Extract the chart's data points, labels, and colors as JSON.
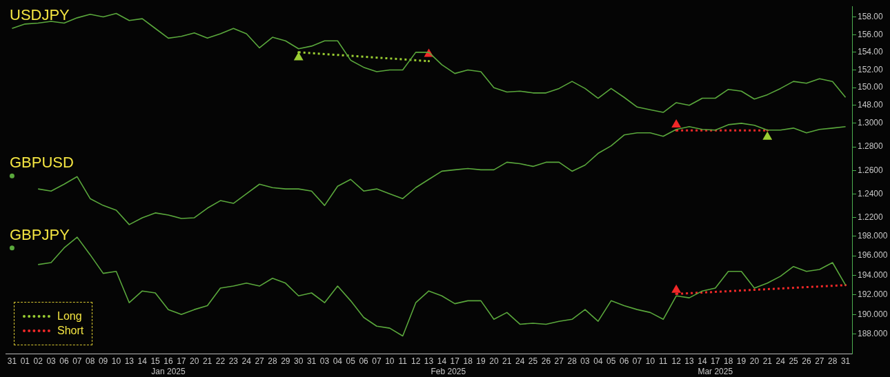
{
  "chart_data": {
    "type": "line",
    "line_style": "solid",
    "legend": "bottom left",
    "categories": [
      "31",
      "01",
      "02",
      "03",
      "06",
      "07",
      "08",
      "09",
      "10",
      "13",
      "14",
      "15",
      "16",
      "17",
      "20",
      "21",
      "22",
      "23",
      "24",
      "27",
      "28",
      "29",
      "30",
      "31",
      "03",
      "04",
      "05",
      "06",
      "07",
      "10",
      "11",
      "12",
      "13",
      "14",
      "17",
      "18",
      "19",
      "20",
      "21",
      "24",
      "25",
      "26",
      "27",
      "28",
      "03",
      "04",
      "05",
      "06",
      "07",
      "10",
      "11",
      "12",
      "13",
      "14",
      "17",
      "18",
      "19",
      "20",
      "21",
      "24",
      "25",
      "26",
      "27",
      "28",
      "31"
    ],
    "annotations": [
      "Jan 2025",
      "Feb 2025",
      "Mar 2025"
    ],
    "ylim": [
      119.9,
      159.2
    ],
    "yticks": [
      {
        "value": 148,
        "label": "148.00"
      },
      {
        "value": 150,
        "label": "150.00"
      },
      {
        "value": 152,
        "label": "152.00"
      },
      {
        "value": 154,
        "label": "154.00"
      },
      {
        "value": 156,
        "label": "156.00"
      },
      {
        "value": 158,
        "label": "158.00"
      }
    ],
    "y2lim": [
      1.105,
      1.399
    ],
    "y2ticks": [
      {
        "value": 1.22,
        "label": "1.2200"
      },
      {
        "value": 1.24,
        "label": "1.2400"
      },
      {
        "value": 1.26,
        "label": "1.2600"
      },
      {
        "value": 1.28,
        "label": "1.2800"
      },
      {
        "value": 1.3,
        "label": "1.3000"
      }
    ],
    "y3lim": [
      186.0,
      221.5
    ],
    "y3ticks": [
      {
        "value": 188,
        "label": "188.000"
      },
      {
        "value": 190,
        "label": "190.000"
      },
      {
        "value": 192,
        "label": "192.000"
      },
      {
        "value": 194,
        "label": "194.000"
      },
      {
        "value": 196,
        "label": "196.000"
      },
      {
        "value": 198,
        "label": "198.000"
      }
    ],
    "series": [
      {
        "name": "USDJPY",
        "axis": "y",
        "color": "#5aa83c",
        "marker": "none",
        "values": [
          156.7,
          157.2,
          157.3,
          157.5,
          157.3,
          157.9,
          158.3,
          158.0,
          158.4,
          157.6,
          157.8,
          156.7,
          155.6,
          155.8,
          156.2,
          155.6,
          156.1,
          156.7,
          156.1,
          154.5,
          155.7,
          155.3,
          154.4,
          154.7,
          155.3,
          155.3,
          153.1,
          152.3,
          151.8,
          152.0,
          152.0,
          154.0,
          154.0,
          152.6,
          151.6,
          152.0,
          151.8,
          150.0,
          149.5,
          149.6,
          149.4,
          149.4,
          149.9,
          150.7,
          149.9,
          148.8,
          149.9,
          148.9,
          147.8,
          147.5,
          147.2,
          148.3,
          148.0,
          148.8,
          148.8,
          149.8,
          149.6,
          148.7,
          149.2,
          149.9,
          150.7,
          150.5,
          151.0,
          150.7,
          148.9
        ]
      },
      {
        "name": "GBPUSD",
        "axis": "y2",
        "color": "#5aa83c",
        "marker": "none",
        "values": [
          1.2554,
          null,
          1.2444,
          1.2426,
          1.2484,
          1.2548,
          1.2362,
          1.2304,
          1.2264,
          1.2142,
          1.22,
          1.2241,
          1.2223,
          1.2194,
          1.22,
          1.2281,
          1.2345,
          1.2322,
          1.2403,
          1.2484,
          1.2455,
          1.2444,
          1.2444,
          1.2426,
          1.2304,
          1.2467,
          1.2525,
          1.2426,
          1.2444,
          1.2403,
          1.2362,
          1.2455,
          1.2525,
          1.2594,
          1.2606,
          1.2617,
          1.2606,
          1.2606,
          1.267,
          1.2658,
          1.2635,
          1.267,
          1.267,
          1.2594,
          1.2646,
          1.2745,
          1.2809,
          1.2901,
          1.2919,
          1.2919,
          1.289,
          1.2948,
          1.2971,
          1.2948,
          1.2942,
          1.2988,
          1.3,
          1.2983,
          1.2942,
          1.2942,
          1.2959,
          1.2919,
          1.2948,
          1.2959,
          1.2971
        ]
      },
      {
        "name": "GBPJPY",
        "axis": "y3",
        "color": "#5aa83c",
        "marker": "none",
        "values": [
          196.8,
          null,
          195.1,
          195.3,
          196.8,
          197.9,
          196.1,
          194.2,
          194.4,
          191.2,
          192.4,
          192.2,
          190.5,
          190.0,
          190.5,
          190.9,
          192.7,
          192.9,
          193.2,
          192.9,
          193.7,
          193.2,
          191.9,
          192.2,
          191.2,
          192.9,
          191.4,
          189.7,
          188.8,
          188.6,
          187.8,
          191.2,
          192.4,
          191.9,
          191.1,
          191.4,
          191.4,
          189.5,
          190.2,
          189.0,
          189.1,
          189.0,
          189.3,
          189.5,
          190.5,
          189.3,
          191.4,
          190.9,
          190.5,
          190.2,
          189.5,
          191.9,
          191.7,
          192.4,
          192.7,
          194.4,
          194.4,
          192.7,
          193.2,
          193.9,
          194.9,
          194.4,
          194.6,
          195.3,
          193.0
        ]
      },
      {
        "name": "Long",
        "axis": "y",
        "color": "#9acd32",
        "marker": "none",
        "line_style": "dotted",
        "values": [
          null,
          null,
          null,
          null,
          null,
          null,
          null,
          null,
          null,
          null,
          null,
          null,
          null,
          null,
          null,
          null,
          null,
          null,
          null,
          null,
          null,
          null,
          154.0,
          null,
          null,
          null,
          null,
          null,
          null,
          null,
          null,
          null,
          153.0,
          null,
          null,
          null,
          null,
          null,
          null,
          null,
          null,
          null,
          null,
          null,
          null,
          null,
          null,
          null,
          null,
          null,
          null,
          null,
          null,
          null,
          null,
          null,
          null,
          null,
          null,
          null,
          null,
          null,
          null,
          null,
          null
        ]
      },
      {
        "name": "Short",
        "axis": "y2",
        "color": "#f02828",
        "marker": "none",
        "line_style": "dotted",
        "values": [
          null,
          null,
          null,
          null,
          null,
          null,
          null,
          null,
          null,
          null,
          null,
          null,
          null,
          null,
          null,
          null,
          null,
          null,
          null,
          null,
          null,
          null,
          null,
          null,
          null,
          null,
          null,
          null,
          null,
          null,
          null,
          null,
          null,
          null,
          null,
          null,
          null,
          null,
          null,
          null,
          null,
          null,
          null,
          null,
          null,
          null,
          null,
          null,
          null,
          null,
          null,
          1.294,
          null,
          null,
          null,
          null,
          null,
          null,
          1.294,
          null,
          null,
          null,
          null,
          null,
          null
        ]
      },
      {
        "axis": "y3",
        "color": "#f02828",
        "marker": "none",
        "line_style": "dotted",
        "values": [
          null,
          null,
          null,
          null,
          null,
          null,
          null,
          null,
          null,
          null,
          null,
          null,
          null,
          null,
          null,
          null,
          null,
          null,
          null,
          null,
          null,
          null,
          null,
          null,
          null,
          null,
          null,
          null,
          null,
          null,
          null,
          null,
          null,
          null,
          null,
          null,
          null,
          null,
          null,
          null,
          null,
          null,
          null,
          null,
          null,
          null,
          null,
          null,
          null,
          null,
          null,
          192.1,
          null,
          null,
          null,
          null,
          null,
          null,
          null,
          null,
          null,
          null,
          null,
          null,
          193.0
        ]
      },
      {
        "type": "scatter",
        "axis": "y",
        "color": "#9acd32",
        "marker": "triangle",
        "values": [
          null,
          null,
          null,
          null,
          null,
          null,
          null,
          null,
          null,
          null,
          null,
          null,
          null,
          null,
          null,
          null,
          null,
          null,
          null,
          null,
          null,
          null,
          153.4,
          null,
          null,
          null,
          null,
          null,
          null,
          null,
          null,
          null,
          null,
          null,
          null,
          null,
          null,
          null,
          null,
          null,
          null,
          null,
          null,
          null,
          null,
          null,
          null,
          null,
          null,
          null,
          null,
          null,
          null,
          null,
          null,
          null,
          null,
          null,
          null,
          null,
          null,
          null,
          null,
          null,
          null
        ]
      },
      {
        "type": "scatter",
        "axis": "y2",
        "color": "#9acd32",
        "marker": "triangle",
        "values": [
          null,
          null,
          null,
          null,
          null,
          null,
          null,
          null,
          null,
          null,
          null,
          null,
          null,
          null,
          null,
          null,
          null,
          null,
          null,
          null,
          null,
          null,
          null,
          null,
          null,
          null,
          null,
          null,
          null,
          null,
          null,
          null,
          null,
          null,
          null,
          null,
          null,
          null,
          null,
          null,
          null,
          null,
          null,
          null,
          null,
          null,
          null,
          null,
          null,
          null,
          null,
          null,
          null,
          null,
          null,
          null,
          null,
          null,
          1.2884,
          null,
          null,
          null,
          null,
          null,
          null
        ]
      },
      {
        "type": "scatter",
        "axis": "y",
        "color": "#f02828",
        "marker": "triangle",
        "values": [
          null,
          null,
          null,
          null,
          null,
          null,
          null,
          null,
          null,
          null,
          null,
          null,
          null,
          null,
          null,
          null,
          null,
          null,
          null,
          null,
          null,
          null,
          null,
          null,
          null,
          null,
          null,
          null,
          null,
          null,
          null,
          null,
          153.8,
          null,
          null,
          null,
          null,
          null,
          null,
          null,
          null,
          null,
          null,
          null,
          null,
          null,
          null,
          null,
          null,
          null,
          null,
          null,
          null,
          null,
          null,
          null,
          null,
          null,
          null,
          null,
          null,
          null,
          null,
          null,
          null
        ]
      },
      {
        "type": "scatter",
        "axis": "y2",
        "color": "#f02828",
        "marker": "triangle",
        "values": [
          null,
          null,
          null,
          null,
          null,
          null,
          null,
          null,
          null,
          null,
          null,
          null,
          null,
          null,
          null,
          null,
          null,
          null,
          null,
          null,
          null,
          null,
          null,
          null,
          null,
          null,
          null,
          null,
          null,
          null,
          null,
          null,
          null,
          null,
          null,
          null,
          null,
          null,
          null,
          null,
          null,
          null,
          null,
          null,
          null,
          null,
          null,
          null,
          null,
          null,
          null,
          1.2988,
          null,
          null,
          null,
          null,
          null,
          null,
          null,
          null,
          null,
          null,
          null,
          null,
          null
        ]
      },
      {
        "type": "scatter",
        "axis": "y3",
        "color": "#f02828",
        "marker": "triangle",
        "values": [
          null,
          null,
          null,
          null,
          null,
          null,
          null,
          null,
          null,
          null,
          null,
          null,
          null,
          null,
          null,
          null,
          null,
          null,
          null,
          null,
          null,
          null,
          null,
          null,
          null,
          null,
          null,
          null,
          null,
          null,
          null,
          null,
          null,
          null,
          null,
          null,
          null,
          null,
          null,
          null,
          null,
          null,
          null,
          null,
          null,
          null,
          null,
          null,
          null,
          null,
          null,
          192.5,
          null,
          null,
          null,
          null,
          null,
          null,
          null,
          null,
          null,
          null,
          null,
          null,
          null
        ]
      }
    ]
  }
}
